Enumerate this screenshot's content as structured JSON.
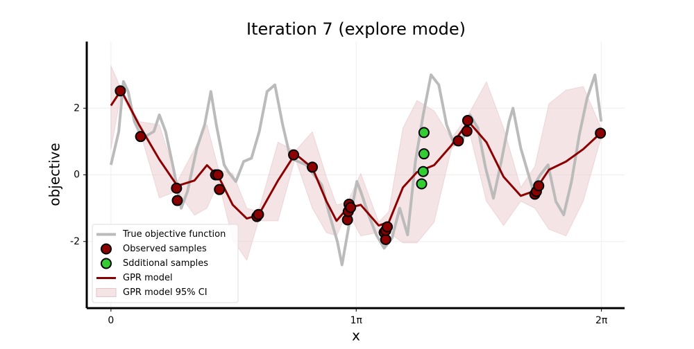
{
  "chart_data": {
    "type": "line",
    "title": "Iteration 7 (explore mode)",
    "x_label": "x",
    "y_label": "objective",
    "xlim": [
      -0.31,
      6.58
    ],
    "ylim": [
      -4,
      4
    ],
    "xticks": [
      0,
      {
        "value": 3.14159,
        "label": "1π"
      },
      {
        "value": 6.28319,
        "label": "2π"
      }
    ],
    "yticks": [
      -2,
      0,
      2
    ],
    "grid": true,
    "legend": "lower left",
    "series": [
      {
        "name": "True objective function",
        "type": "line",
        "color": "#bbbbbb",
        "x": [
          0,
          0.1,
          0.16,
          0.22,
          0.3,
          0.4,
          0.55,
          0.62,
          0.7,
          0.8,
          0.9,
          0.98,
          1.1,
          1.2,
          1.28,
          1.35,
          1.45,
          1.5,
          1.6,
          1.7,
          1.8,
          1.9,
          2.0,
          2.1,
          2.2,
          2.3,
          2.5,
          2.7,
          2.8,
          2.9,
          2.96,
          3.05,
          3.15,
          3.2,
          3.3,
          3.4,
          3.5,
          3.6,
          3.7,
          3.8,
          3.9,
          4.0,
          4.1,
          4.2,
          4.3,
          4.4,
          4.5,
          4.6,
          4.7,
          4.8,
          4.9,
          5.0,
          5.1,
          5.15,
          5.25,
          5.4,
          5.5,
          5.6,
          5.7,
          5.8,
          5.9,
          6.0,
          6.1,
          6.2,
          6.28
        ],
        "values": [
          0.3,
          1.3,
          2.8,
          2.5,
          1.6,
          1.1,
          1.3,
          1.8,
          1.3,
          0.2,
          -1.0,
          -0.5,
          0.8,
          1.5,
          2.5,
          1.5,
          0.3,
          0.1,
          -0.2,
          0.4,
          0.5,
          1.3,
          2.5,
          2.7,
          1.5,
          0.5,
          0.3,
          -0.3,
          -1.2,
          -2.0,
          -2.7,
          -1.5,
          -0.2,
          -0.5,
          -1.2,
          -1.8,
          -2.2,
          -1.9,
          -1.0,
          -1.8,
          0.4,
          1.8,
          3.0,
          2.7,
          1.5,
          0.9,
          1.0,
          1.8,
          1.4,
          0.2,
          -0.7,
          0.4,
          1.6,
          2.0,
          0.8,
          -0.4,
          0.0,
          0.3,
          -0.8,
          -1.2,
          -0.2,
          1.2,
          2.3,
          3.0,
          1.6
        ]
      },
      {
        "name": "Observed samples",
        "type": "scatter",
        "color": "#8b0000",
        "x": [
          0.12,
          0.38,
          0.84,
          0.85,
          1.34,
          1.37,
          1.39,
          1.87,
          1.89,
          2.34,
          2.58,
          3.03,
          3.04,
          3.05,
          3.07,
          3.5,
          3.52,
          3.52,
          3.54,
          4.45,
          4.56,
          4.57,
          5.43,
          5.45,
          5.48,
          6.27
        ],
        "values": [
          2.52,
          1.15,
          -0.4,
          -0.77,
          0.0,
          0.0,
          -0.44,
          -1.25,
          -1.19,
          0.6,
          0.23,
          -1.35,
          -1.1,
          -0.88,
          -0.98,
          -1.73,
          -1.94,
          -1.67,
          -1.56,
          1.02,
          1.31,
          1.63,
          -0.58,
          -0.5,
          -0.33,
          1.25
        ]
      },
      {
        "name": "Sdditional samples",
        "type": "scatter",
        "color": "#33cc33",
        "x": [
          4.01,
          4.01,
          4.0,
          3.98
        ],
        "values": [
          1.27,
          0.63,
          0.1,
          -0.27
        ]
      },
      {
        "name": "GPR model",
        "type": "line",
        "color": "#8b0000",
        "x": [
          0,
          0.13,
          0.36,
          0.62,
          0.85,
          1.07,
          1.23,
          1.38,
          1.56,
          1.74,
          1.89,
          2.14,
          2.36,
          2.58,
          2.76,
          2.89,
          3.03,
          3.2,
          3.43,
          3.56,
          3.74,
          3.92,
          4.14,
          4.36,
          4.58,
          4.81,
          5.03,
          5.25,
          5.43,
          5.61,
          5.83,
          6.05,
          6.28
        ],
        "values": [
          2.08,
          2.54,
          1.5,
          0.46,
          -0.33,
          -0.17,
          0.29,
          -0.06,
          -0.9,
          -1.31,
          -1.21,
          -0.17,
          0.63,
          0.21,
          -0.79,
          -1.38,
          -1.0,
          -0.9,
          -1.52,
          -1.42,
          -0.38,
          0.08,
          0.29,
          0.88,
          1.6,
          0.98,
          -0.06,
          -0.63,
          -0.48,
          0.15,
          0.4,
          0.77,
          1.27
        ]
      },
      {
        "name": "GPR model 95% CI",
        "type": "band",
        "color": "#e6c3c8",
        "x": [
          0,
          0.13,
          0.36,
          0.62,
          0.85,
          1.07,
          1.23,
          1.38,
          1.56,
          1.74,
          1.89,
          2.14,
          2.36,
          2.58,
          2.76,
          2.89,
          3.03,
          3.2,
          3.43,
          3.56,
          3.74,
          3.92,
          4.14,
          4.36,
          4.58,
          4.81,
          5.03,
          5.25,
          5.43,
          5.61,
          5.83,
          6.05,
          6.28
        ],
        "lower": [
          0.77,
          2.44,
          1.4,
          -0.69,
          -0.48,
          -1.21,
          -1.0,
          -0.21,
          -1.94,
          -2.56,
          -1.38,
          -1.38,
          0.5,
          -1.0,
          -1.73,
          -1.83,
          -1.1,
          -1.83,
          -1.73,
          -1.73,
          -2.04,
          -2.04,
          -1.42,
          0.77,
          1.4,
          -0.79,
          -1.52,
          -0.79,
          -1.0,
          -1.63,
          -1.83,
          -0.79,
          1.13
        ],
        "upper": [
          3.27,
          2.58,
          1.6,
          1.5,
          -0.2,
          0.77,
          1.5,
          0.15,
          0.04,
          -1.0,
          -1.1,
          0.98,
          0.71,
          1.29,
          -0.06,
          -0.9,
          -0.83,
          0.04,
          -1.42,
          -1.1,
          1.4,
          2.23,
          1.92,
          1.08,
          1.81,
          2.79,
          1.4,
          -0.38,
          0.25,
          2.13,
          2.54,
          2.65,
          1.4
        ]
      }
    ]
  }
}
